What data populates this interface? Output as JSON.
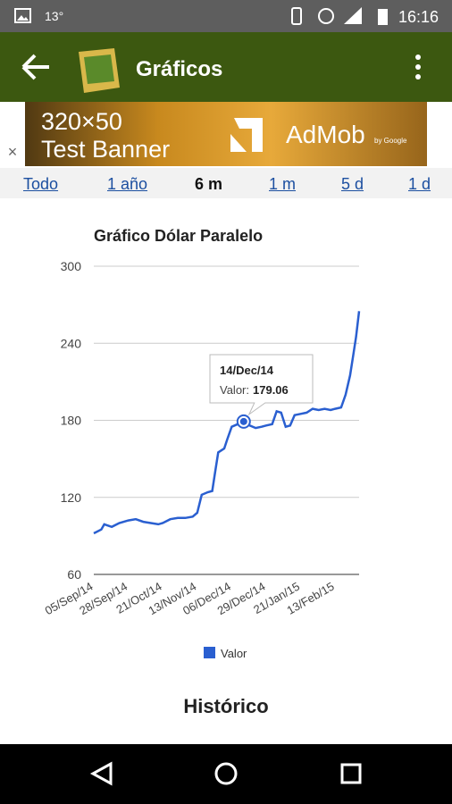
{
  "status_bar": {
    "temperature": "13°",
    "time": "16:16"
  },
  "app_bar": {
    "title": "Gráficos"
  },
  "ad_banner": {
    "size": "320×50",
    "label": "Test Banner",
    "brand": "AdMob",
    "byline": "by Google"
  },
  "tabs": [
    "Todo",
    "1 año",
    "6 m",
    "1 m",
    "5 d",
    "1 d"
  ],
  "active_tab": 2,
  "chart_data": {
    "type": "line",
    "title": "Gráfico Dólar Paralelo",
    "x": [
      "05/Sep/14",
      "10/Sep/14",
      "12/Sep/14",
      "17/Sep/14",
      "22/Sep/14",
      "28/Sep/14",
      "03/Oct/14",
      "08/Oct/14",
      "13/Oct/14",
      "18/Oct/14",
      "21/Oct/14",
      "26/Oct/14",
      "31/Oct/14",
      "05/Nov/14",
      "10/Nov/14",
      "13/Nov/14",
      "16/Nov/14",
      "20/Nov/14",
      "23/Nov/14",
      "25/Nov/14",
      "27/Nov/14",
      "01/Dec/14",
      "03/Dec/14",
      "06/Dec/14",
      "10/Dec/14",
      "14/Dec/14",
      "18/Dec/14",
      "22/Dec/14",
      "26/Dec/14",
      "29/Dec/14",
      "02/Jan/15",
      "05/Jan/15",
      "08/Jan/15",
      "11/Jan/15",
      "14/Jan/15",
      "17/Jan/15",
      "21/Jan/15",
      "25/Jan/15",
      "29/Jan/15",
      "02/Feb/15",
      "06/Feb/15",
      "10/Feb/15",
      "13/Feb/15",
      "17/Feb/15",
      "20/Feb/15",
      "23/Feb/15",
      "25/Feb/15",
      "27/Feb/15",
      "01/Mar/15"
    ],
    "series": [
      {
        "name": "Valor",
        "color": "#2a5fd0",
        "values": [
          92,
          95,
          99,
          97,
          100,
          102,
          103,
          101,
          100,
          99,
          100,
          103,
          104,
          104,
          105,
          108,
          122,
          124,
          125,
          140,
          155,
          158,
          165,
          175,
          177,
          179.06,
          176,
          174,
          175,
          176,
          177,
          187,
          186,
          175,
          176,
          184,
          185,
          186,
          189,
          188,
          189,
          188,
          189,
          190,
          200,
          215,
          230,
          245,
          265
        ]
      }
    ],
    "xticks": [
      "05/Sep/14",
      "28/Sep/14",
      "21/Oct/14",
      "13/Nov/14",
      "06/Dec/14",
      "29/Dec/14",
      "21/Jan/15",
      "13/Feb/15"
    ],
    "ylim": [
      60,
      300
    ],
    "yticks": [
      60,
      120,
      180,
      240,
      300
    ],
    "grid": true,
    "legend": "bottom",
    "tooltip": {
      "index": 25,
      "label": "Valor:"
    }
  },
  "section_title": "Histórico"
}
